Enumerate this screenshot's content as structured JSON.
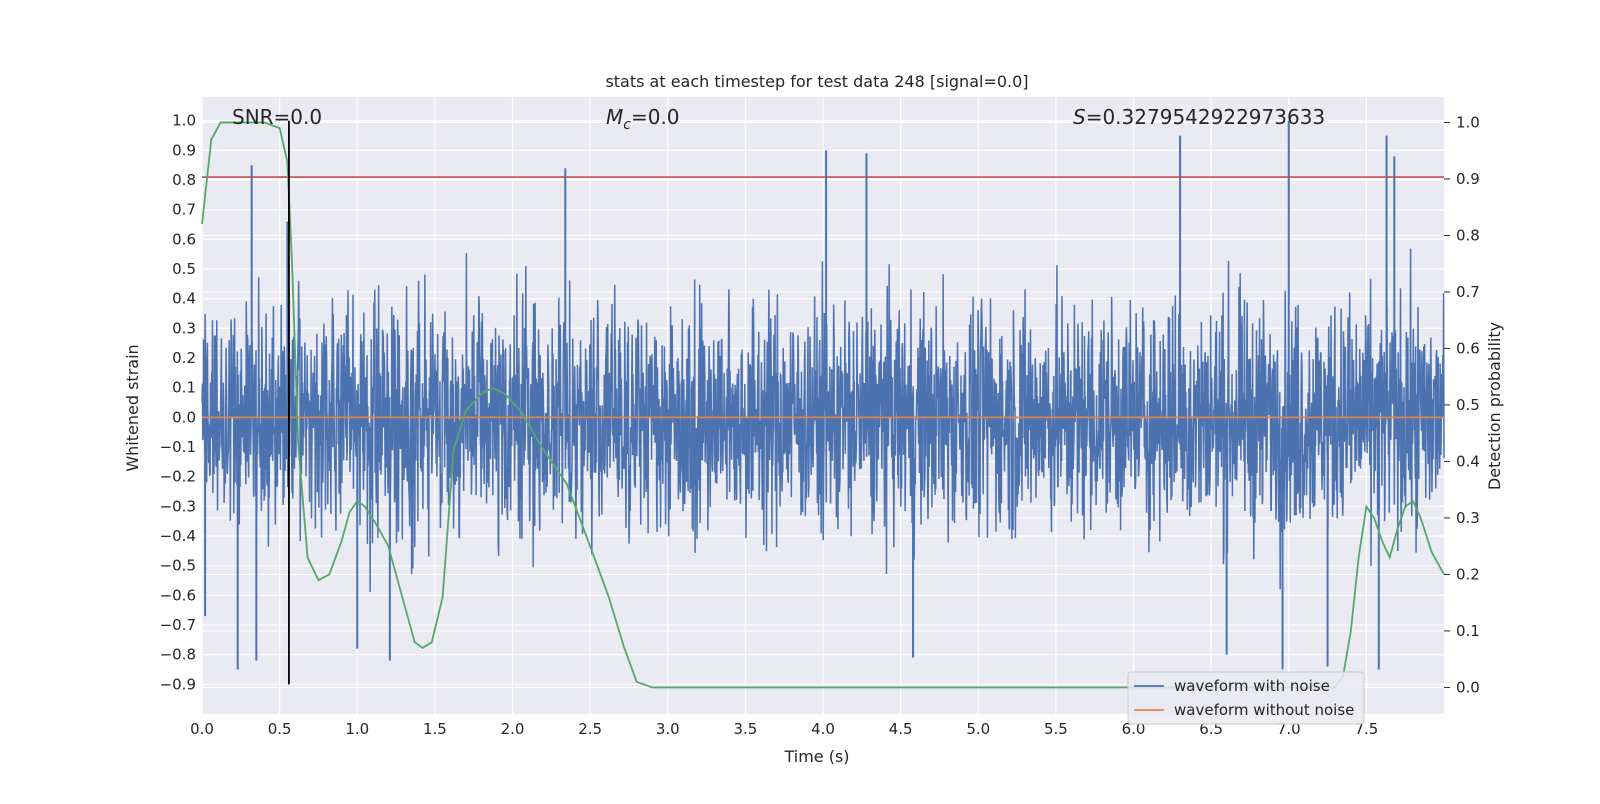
{
  "chart_data": {
    "type": "line",
    "title": "stats at each timestep for test data 248 [signal=0.0]",
    "xlabel": "Time (s)",
    "ylabel": "Whitened strain",
    "y2label": "Detection probability",
    "xlim": [
      0.0,
      8.0
    ],
    "ylim": [
      -1.0,
      1.08
    ],
    "y2lim": [
      -0.047,
      1.045
    ],
    "x_ticks": [
      "0.0",
      "0.5",
      "1.0",
      "1.5",
      "2.0",
      "2.5",
      "3.0",
      "3.5",
      "4.0",
      "4.5",
      "5.0",
      "5.5",
      "6.0",
      "6.5",
      "7.0",
      "7.5"
    ],
    "y_ticks": [
      "1.0",
      "0.9",
      "0.8",
      "0.7",
      "0.6",
      "0.5",
      "0.4",
      "0.3",
      "0.2",
      "0.1",
      "0.0",
      "−0.1",
      "−0.2",
      "−0.3",
      "−0.4",
      "−0.5",
      "−0.6",
      "−0.7",
      "−0.8",
      "−0.9"
    ],
    "y2_ticks": [
      "1.0",
      "0.9",
      "0.8",
      "0.7",
      "0.6",
      "0.5",
      "0.4",
      "0.3",
      "0.2",
      "0.1",
      "0.0"
    ],
    "grid": true,
    "legend_position": "lower-right",
    "annotations": {
      "snr": "SNR=0.0",
      "mc_symbol": "M",
      "mc_sub": "c",
      "mc_value": "=0.0",
      "s_symbol": "S",
      "s_value": "=0.3279542922973633"
    },
    "series": [
      {
        "name": "waveform with noise",
        "color": "#4c72b0",
        "axis": "left",
        "envelope_note": "dense noise approx between -0.5 and 0.55 with spikes",
        "spike_points": [
          [
            0.32,
            0.85
          ],
          [
            0.55,
            0.66
          ],
          [
            2.34,
            0.84
          ],
          [
            4.02,
            0.9
          ],
          [
            4.28,
            0.89
          ],
          [
            6.3,
            0.95
          ],
          [
            7.0,
            1.0
          ],
          [
            7.63,
            0.95
          ],
          [
            7.68,
            0.88
          ],
          [
            0.35,
            -0.82
          ],
          [
            0.23,
            -0.85
          ],
          [
            1.21,
            -0.82
          ],
          [
            4.58,
            -0.81
          ],
          [
            6.6,
            -0.8
          ],
          [
            6.96,
            -0.85
          ],
          [
            7.58,
            -0.85
          ],
          [
            7.25,
            -0.84
          ],
          [
            0.02,
            -0.67
          ],
          [
            1.0,
            -0.78
          ]
        ]
      },
      {
        "name": "waveform without noise",
        "color": "#dd8452",
        "axis": "left",
        "x": [
          0.0,
          8.0
        ],
        "y": [
          0.0,
          0.0
        ]
      },
      {
        "color": "#55a868",
        "axis": "right",
        "x": [
          0.0,
          0.06,
          0.12,
          0.2,
          0.3,
          0.4,
          0.5,
          0.55,
          0.58,
          0.62,
          0.68,
          0.75,
          0.82,
          0.9,
          0.95,
          1.0,
          1.05,
          1.12,
          1.2,
          1.3,
          1.37,
          1.42,
          1.48,
          1.55,
          1.62,
          1.7,
          1.8,
          1.87,
          1.95,
          2.05,
          2.2,
          2.35,
          2.5,
          2.62,
          2.72,
          2.8,
          2.9,
          3.2,
          4.0,
          4.4,
          5.0,
          6.0,
          7.0,
          7.25,
          7.3,
          7.35,
          7.4,
          7.45,
          7.5,
          7.55,
          7.6,
          7.65,
          7.7,
          7.75,
          7.8,
          7.85,
          7.92,
          8.0
        ],
        "y": [
          0.82,
          0.97,
          1.0,
          1.0,
          1.0,
          1.0,
          0.99,
          0.93,
          0.75,
          0.43,
          0.23,
          0.19,
          0.2,
          0.26,
          0.31,
          0.33,
          0.32,
          0.29,
          0.25,
          0.15,
          0.08,
          0.07,
          0.08,
          0.16,
          0.42,
          0.49,
          0.52,
          0.53,
          0.52,
          0.49,
          0.42,
          0.36,
          0.25,
          0.16,
          0.07,
          0.01,
          0.0,
          0.0,
          0.0,
          0.0,
          0.0,
          0.0,
          0.0,
          0.0,
          0.0,
          0.02,
          0.1,
          0.23,
          0.32,
          0.3,
          0.26,
          0.23,
          0.28,
          0.32,
          0.33,
          0.3,
          0.24,
          0.2
        ]
      }
    ],
    "hlines": [
      {
        "y": 0.81,
        "color": "#c44e52",
        "axis": "left"
      }
    ],
    "vlines": [
      {
        "x": 0.56,
        "ymin": -0.9,
        "ymax": 1.0,
        "color": "#000000",
        "axis": "left"
      }
    ]
  }
}
